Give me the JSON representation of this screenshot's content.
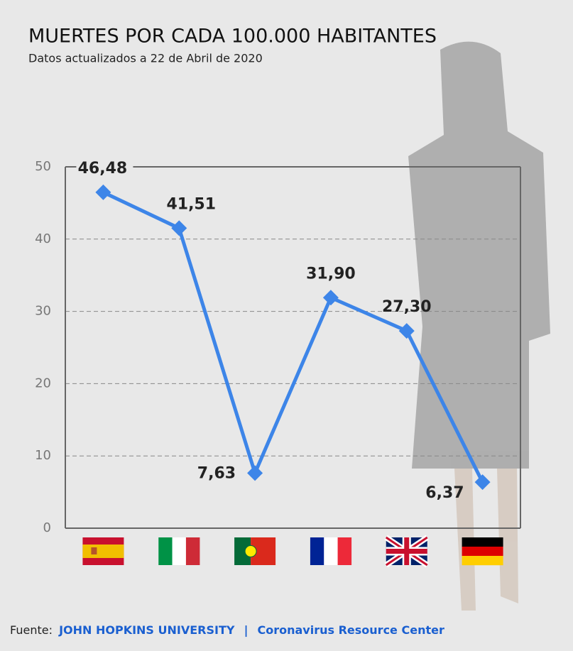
{
  "chart_data": {
    "type": "line",
    "title": "MUERTES POR CADA 100.000 HABITANTES",
    "subtitle": "Datos actualizados a 22 de Abril de 2020",
    "categories": [
      null,
      null,
      null,
      null,
      null,
      null
    ],
    "series": [
      {
        "name": null,
        "color": "#3d85e8",
        "values": [
          46.48,
          41.51,
          7.63,
          31.9,
          27.3,
          6.37
        ],
        "value_labels": [
          "46,48",
          "41,51",
          "7,63",
          "31,90",
          "27,30",
          "6,37"
        ]
      }
    ],
    "ylim": [
      0,
      50
    ],
    "yticks": [
      0,
      10,
      20,
      30,
      40,
      50
    ],
    "grid": true,
    "source": [
      "Fuente:",
      "JOHN HOPKINS UNIVERSITY",
      "|",
      "Coronavirus Resource Center"
    ]
  }
}
